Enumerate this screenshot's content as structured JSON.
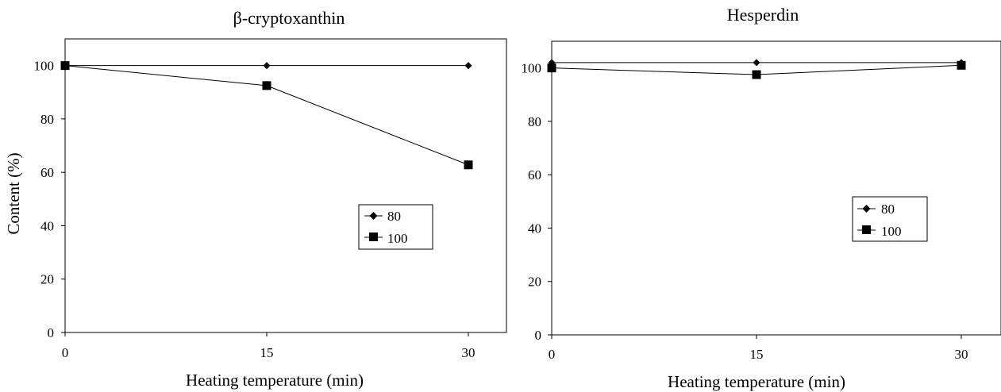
{
  "chart_data": [
    {
      "type": "line",
      "title": "β-cryptoxanthin",
      "xlabel": "Heating temperature (min)",
      "ylabel": "Content (%)",
      "x": [
        0,
        15,
        30
      ],
      "xlim": [
        0,
        33
      ],
      "ylim": [
        0,
        110
      ],
      "yticks": [
        0,
        20,
        40,
        60,
        80,
        100
      ],
      "xticks": [
        0,
        15,
        30
      ],
      "legend_position": "center-right",
      "series": [
        {
          "name": "80",
          "marker": "diamond",
          "values": [
            100,
            100,
            100
          ]
        },
        {
          "name": "100",
          "marker": "square",
          "values": [
            100,
            92.5,
            62.8
          ]
        }
      ]
    },
    {
      "type": "line",
      "title": "Hesperdin",
      "xlabel": "Heating temperature (min)",
      "ylabel": "",
      "x": [
        0,
        15,
        30
      ],
      "xlim": [
        0,
        33
      ],
      "ylim": [
        0,
        110
      ],
      "yticks": [
        0,
        20,
        40,
        60,
        80,
        100
      ],
      "xticks": [
        0,
        15,
        30
      ],
      "legend_position": "center-right",
      "series": [
        {
          "name": "80",
          "marker": "diamond",
          "values": [
            102,
            102,
            102
          ]
        },
        {
          "name": "100",
          "marker": "square",
          "values": [
            100,
            97.5,
            101
          ]
        }
      ]
    }
  ]
}
